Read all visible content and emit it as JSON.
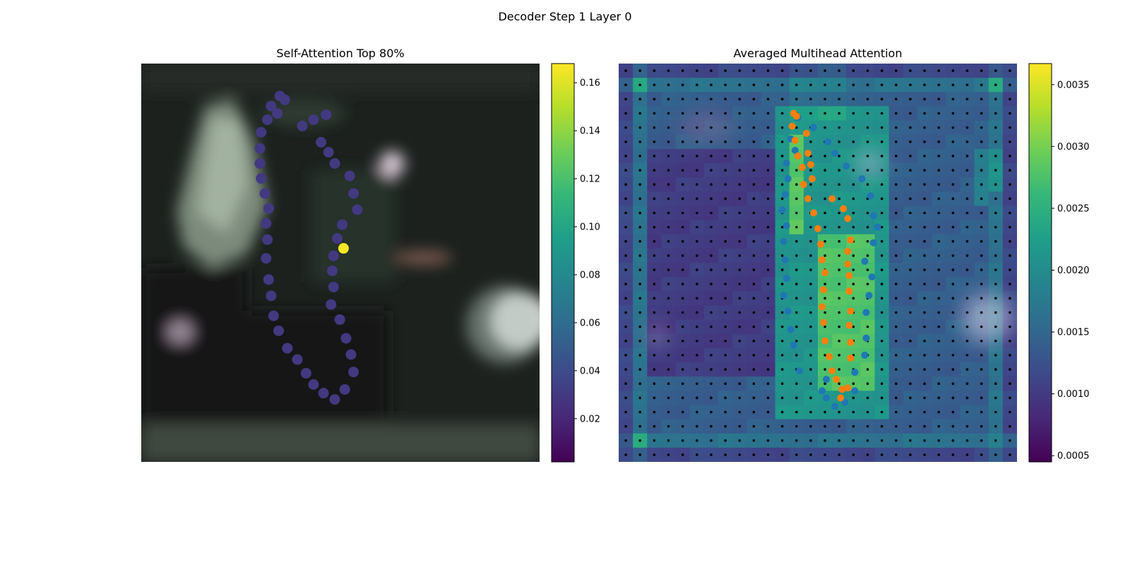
{
  "figure": {
    "title": "Decoder Step 1 Layer 0"
  },
  "colors": {
    "viridis": [
      "#440154",
      "#482878",
      "#3e4989",
      "#31688e",
      "#26828e",
      "#1f9e89",
      "#35b779",
      "#6ece58",
      "#b5de2b",
      "#fde725"
    ],
    "series_a": "#1f77b4",
    "series_b": "#ff7f0e",
    "grid_point": "#000000"
  },
  "chart_data": [
    {
      "type": "scatter",
      "title": "Self-Attention Top 80%",
      "xlim": [
        0,
        31.9
      ],
      "ylim": [
        31.9,
        0
      ],
      "background": "blurred camera image",
      "colorbar": {
        "range": [
          0.002,
          0.168
        ],
        "ticks": [
          0.02,
          0.04,
          0.06,
          0.08,
          0.1,
          0.12,
          0.14,
          0.16
        ],
        "tick_labels": [
          "0.02",
          "0.04",
          "0.06",
          "0.08",
          "0.10",
          "0.12",
          "0.14",
          "0.16"
        ]
      },
      "points": [
        [
          14.8,
          4.1,
          0.03
        ],
        [
          13.8,
          4.5,
          0.03
        ],
        [
          12.9,
          5.0,
          0.03
        ],
        [
          14.4,
          6.3,
          0.03
        ],
        [
          15.0,
          7.1,
          0.03
        ],
        [
          15.5,
          8.0,
          0.03
        ],
        [
          16.7,
          9.0,
          0.03
        ],
        [
          17.0,
          10.4,
          0.03
        ],
        [
          17.3,
          11.7,
          0.03
        ],
        [
          16.1,
          12.9,
          0.03
        ],
        [
          15.7,
          14.0,
          0.03
        ],
        [
          15.4,
          15.4,
          0.03
        ],
        [
          15.3,
          16.6,
          0.03
        ],
        [
          15.4,
          17.9,
          0.03
        ],
        [
          15.2,
          19.3,
          0.03
        ],
        [
          15.9,
          20.5,
          0.03
        ],
        [
          16.4,
          22.0,
          0.03
        ],
        [
          16.8,
          23.3,
          0.03
        ],
        [
          17.0,
          24.7,
          0.03
        ],
        [
          16.3,
          26.1,
          0.03
        ],
        [
          15.5,
          26.9,
          0.03
        ],
        [
          14.6,
          26.4,
          0.03
        ],
        [
          13.8,
          25.7,
          0.03
        ],
        [
          13.2,
          24.8,
          0.03
        ],
        [
          12.5,
          23.7,
          0.03
        ],
        [
          11.7,
          22.8,
          0.03
        ],
        [
          11.0,
          21.4,
          0.03
        ],
        [
          10.6,
          20.2,
          0.03
        ],
        [
          10.4,
          18.6,
          0.03
        ],
        [
          10.2,
          17.3,
          0.03
        ],
        [
          10.0,
          15.6,
          0.03
        ],
        [
          10.1,
          14.1,
          0.03
        ],
        [
          10.0,
          12.8,
          0.03
        ],
        [
          10.2,
          11.6,
          0.03
        ],
        [
          9.9,
          10.4,
          0.03
        ],
        [
          9.6,
          9.2,
          0.03
        ],
        [
          9.5,
          8.0,
          0.03
        ],
        [
          9.5,
          6.8,
          0.03
        ],
        [
          9.6,
          5.5,
          0.03
        ],
        [
          10.1,
          4.5,
          0.03
        ],
        [
          10.4,
          3.4,
          0.03
        ],
        [
          11.1,
          2.6,
          0.03
        ],
        [
          11.5,
          2.9,
          0.03
        ],
        [
          10.9,
          4.0,
          0.03
        ],
        [
          16.2,
          14.8,
          0.166
        ]
      ]
    },
    {
      "type": "heatmap",
      "title": "Averaged Multihead Attention",
      "xlim": [
        0,
        28
      ],
      "ylim": [
        28,
        0
      ],
      "colorbar": {
        "range": [
          0.00045,
          0.00367
        ],
        "ticks": [
          0.0005,
          0.001,
          0.0015,
          0.002,
          0.0025,
          0.003,
          0.0035
        ],
        "tick_labels": [
          "0.0005",
          "0.0010",
          "0.0015",
          "0.0020",
          "0.0025",
          "0.0030",
          "0.0035"
        ]
      },
      "grid": {
        "rows": 28,
        "cols": 28
      },
      "series_a_points": [
        [
          12.6,
          3.8
        ],
        [
          13.7,
          4.5
        ],
        [
          12.1,
          5.3
        ],
        [
          14.7,
          5.5
        ],
        [
          12.4,
          6.1
        ],
        [
          15.2,
          6.3
        ],
        [
          11.8,
          7.0
        ],
        [
          16.0,
          7.2
        ],
        [
          11.9,
          8.1
        ],
        [
          17.1,
          8.1
        ],
        [
          11.7,
          9.2
        ],
        [
          17.7,
          9.3
        ],
        [
          11.5,
          10.3
        ],
        [
          17.9,
          10.7
        ],
        [
          11.8,
          11.4
        ],
        [
          18.2,
          11.5
        ],
        [
          11.6,
          12.5
        ],
        [
          17.9,
          12.6
        ],
        [
          11.7,
          13.8
        ],
        [
          17.3,
          13.9
        ],
        [
          11.8,
          15.1
        ],
        [
          17.8,
          15.0
        ],
        [
          11.6,
          16.3
        ],
        [
          17.6,
          16.3
        ],
        [
          11.9,
          17.4
        ],
        [
          17.4,
          17.5
        ],
        [
          12.1,
          18.7
        ],
        [
          17.4,
          19.3
        ],
        [
          12.3,
          19.8
        ],
        [
          17.3,
          20.5
        ],
        [
          12.7,
          21.6
        ],
        [
          16.6,
          21.7
        ],
        [
          14.6,
          22.2
        ],
        [
          14.3,
          23.0
        ],
        [
          14.6,
          23.5
        ],
        [
          15.2,
          24.1
        ],
        [
          15.9,
          23.8
        ],
        [
          16.6,
          23.0
        ]
      ],
      "series_b_points": [
        [
          12.3,
          3.5
        ],
        [
          12.5,
          3.7
        ],
        [
          12.2,
          4.4
        ],
        [
          13.2,
          4.9
        ],
        [
          12.4,
          5.4
        ],
        [
          12.6,
          6.5
        ],
        [
          13.3,
          6.3
        ],
        [
          13.5,
          7.1
        ],
        [
          12.9,
          7.3
        ],
        [
          13.6,
          8.1
        ],
        [
          13.0,
          8.5
        ],
        [
          13.3,
          9.5
        ],
        [
          15.0,
          9.5
        ],
        [
          15.8,
          10.2
        ],
        [
          13.7,
          10.5
        ],
        [
          16.1,
          10.9
        ],
        [
          14.0,
          11.6
        ],
        [
          16.3,
          12.4
        ],
        [
          14.2,
          12.7
        ],
        [
          16.1,
          13.2
        ],
        [
          14.3,
          13.8
        ],
        [
          16.1,
          14.1
        ],
        [
          14.5,
          14.7
        ],
        [
          16.2,
          14.9
        ],
        [
          14.4,
          15.9
        ],
        [
          16.2,
          16.0
        ],
        [
          14.3,
          17.1
        ],
        [
          16.3,
          17.4
        ],
        [
          14.4,
          18.2
        ],
        [
          16.2,
          18.4
        ],
        [
          14.5,
          19.5
        ],
        [
          16.3,
          19.6
        ],
        [
          14.8,
          20.6
        ],
        [
          16.3,
          20.7
        ],
        [
          15.0,
          21.6
        ],
        [
          15.3,
          22.2
        ],
        [
          16.1,
          22.8
        ],
        [
          15.7,
          22.9
        ],
        [
          15.6,
          23.5
        ]
      ]
    }
  ]
}
